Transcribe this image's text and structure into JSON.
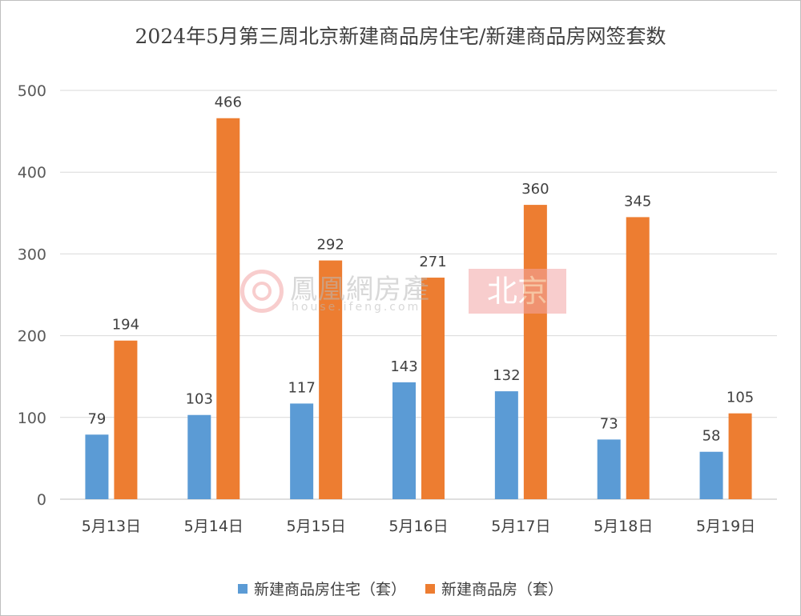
{
  "chart_data": {
    "type": "bar",
    "title": "2024年5月第三周北京新建商品房住宅/新建商品房网签套数",
    "categories": [
      "5月13日",
      "5月14日",
      "5月15日",
      "5月16日",
      "5月17日",
      "5月18日",
      "5月19日"
    ],
    "series": [
      {
        "name": "新建商品房住宅（套）",
        "color": "#5b9bd5",
        "values": [
          79,
          103,
          117,
          143,
          132,
          73,
          58
        ]
      },
      {
        "name": "新建商品房（套）",
        "color": "#ed7d31",
        "values": [
          194,
          466,
          292,
          271,
          360,
          345,
          105
        ]
      }
    ],
    "ylim": [
      0,
      500
    ],
    "yticks": [
      "0",
      "100",
      "200",
      "300",
      "400",
      "500"
    ],
    "grid": true,
    "legend_position": "bottom"
  },
  "watermark": {
    "name": "鳳凰網房產",
    "url": "house.ifeng.com",
    "city": "北京"
  }
}
